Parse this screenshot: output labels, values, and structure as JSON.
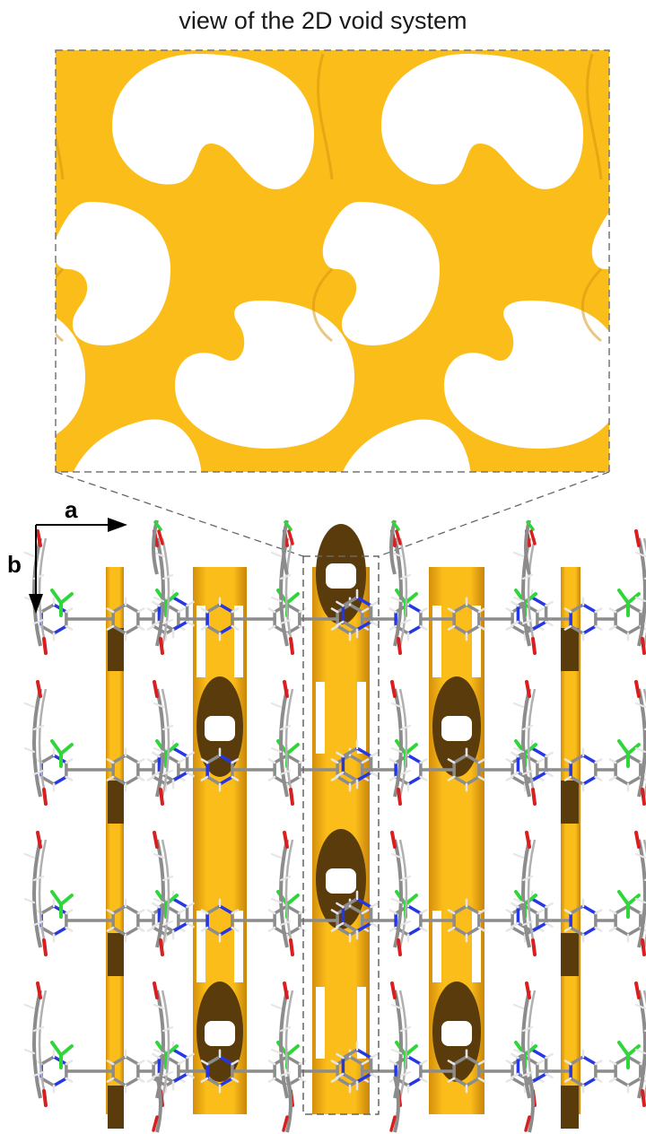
{
  "title": "view of the 2D void system",
  "axes": {
    "a_label": "a",
    "b_label": "b"
  },
  "colors": {
    "void_surface": "#fbbd1a",
    "void_shadow": "#d48f0b",
    "void_interior": "#5a3c0c",
    "carbon": "#8c8c8c",
    "nitrogen": "#2436e6",
    "oxygen": "#d81e1e",
    "chlorine": "#2fd63a",
    "hydrogen": "#e6e6e6",
    "frame": "#777777"
  }
}
